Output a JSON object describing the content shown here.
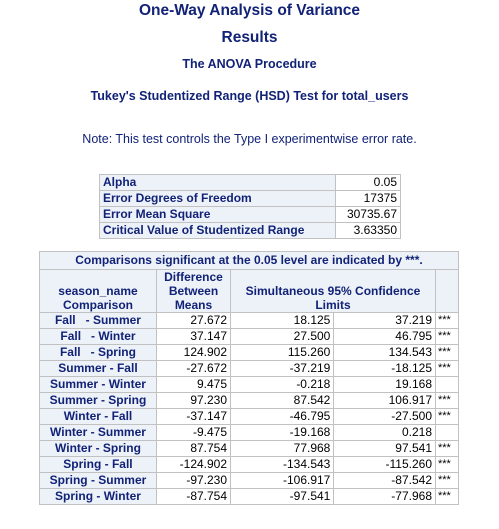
{
  "titles": {
    "main": "One-Way Analysis of Variance",
    "sub": "Results",
    "procedure": "The ANOVA Procedure",
    "test": "Tukey's Studentized Range (HSD) Test for total_users"
  },
  "note": "Note: This test controls the Type I experimentwise error rate.",
  "stats": [
    {
      "label": "Alpha",
      "value": "0.05"
    },
    {
      "label": "Error Degrees of Freedom",
      "value": "17375"
    },
    {
      "label": "Error Mean Square",
      "value": "30735.67"
    },
    {
      "label": "Critical Value of Studentized Range",
      "value": "3.63350"
    }
  ],
  "comparisons": {
    "caption": "Comparisons significant at the 0.05 level are indicated by ***.",
    "headers": {
      "comparison_line1": "season_name",
      "comparison_line2": "Comparison",
      "difference_line1": "Difference",
      "difference_line2": "Between",
      "difference_line3": "Means",
      "limits_line1": "Simultaneous 95% Confidence",
      "limits_line2": "Limits"
    },
    "rows": [
      {
        "comparison": "Fall   - Summer",
        "diff": "27.672",
        "lower": "18.125",
        "upper": "37.219",
        "sig": "***"
      },
      {
        "comparison": "Fall   - Winter",
        "diff": "37.147",
        "lower": "27.500",
        "upper": "46.795",
        "sig": "***"
      },
      {
        "comparison": "Fall   - Spring",
        "diff": "124.902",
        "lower": "115.260",
        "upper": "134.543",
        "sig": "***"
      },
      {
        "comparison": "Summer - Fall",
        "diff": "-27.672",
        "lower": "-37.219",
        "upper": "-18.125",
        "sig": "***"
      },
      {
        "comparison": "Summer - Winter",
        "diff": "9.475",
        "lower": "-0.218",
        "upper": "19.168",
        "sig": ""
      },
      {
        "comparison": "Summer - Spring",
        "diff": "97.230",
        "lower": "87.542",
        "upper": "106.917",
        "sig": "***"
      },
      {
        "comparison": "Winter - Fall",
        "diff": "-37.147",
        "lower": "-46.795",
        "upper": "-27.500",
        "sig": "***"
      },
      {
        "comparison": "Winter - Summer",
        "diff": "-9.475",
        "lower": "-19.168",
        "upper": "0.218",
        "sig": ""
      },
      {
        "comparison": "Winter - Spring",
        "diff": "87.754",
        "lower": "77.968",
        "upper": "97.541",
        "sig": "***"
      },
      {
        "comparison": "Spring - Fall",
        "diff": "-124.902",
        "lower": "-134.543",
        "upper": "-115.260",
        "sig": "***"
      },
      {
        "comparison": "Spring - Summer",
        "diff": "-97.230",
        "lower": "-106.917",
        "upper": "-87.542",
        "sig": "***"
      },
      {
        "comparison": "Spring - Winter",
        "diff": "-87.754",
        "lower": "-97.541",
        "upper": "-77.968",
        "sig": "***"
      }
    ]
  }
}
